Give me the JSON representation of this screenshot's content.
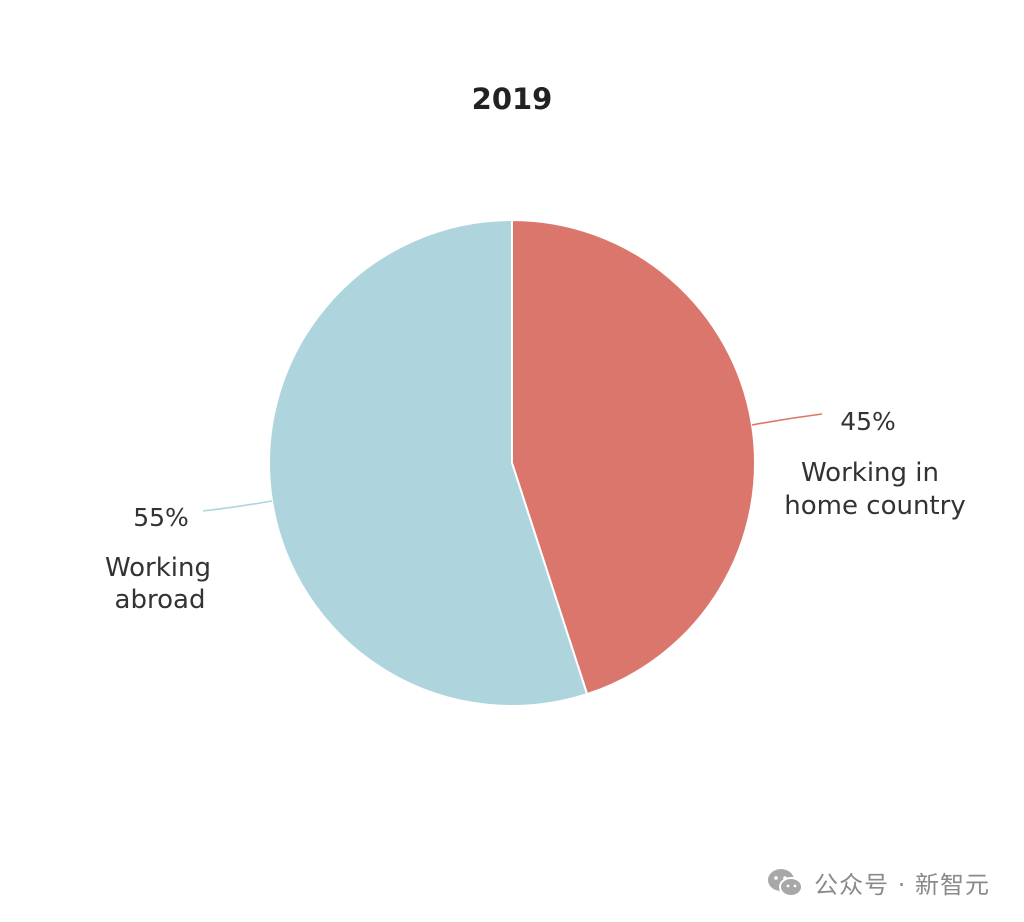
{
  "chart_data": {
    "type": "pie",
    "title": "2019",
    "slices": [
      {
        "value": 45,
        "pct_label": "45%",
        "label_lines": [
          "Working in",
          "home country"
        ],
        "color": "#db766c"
      },
      {
        "value": 55,
        "pct_label": "55%",
        "label_lines": [
          "Working",
          "abroad"
        ],
        "color": "#aed5dd"
      }
    ]
  },
  "watermark": {
    "text": "公众号 · 新智元",
    "icon": "wechat-icon"
  }
}
